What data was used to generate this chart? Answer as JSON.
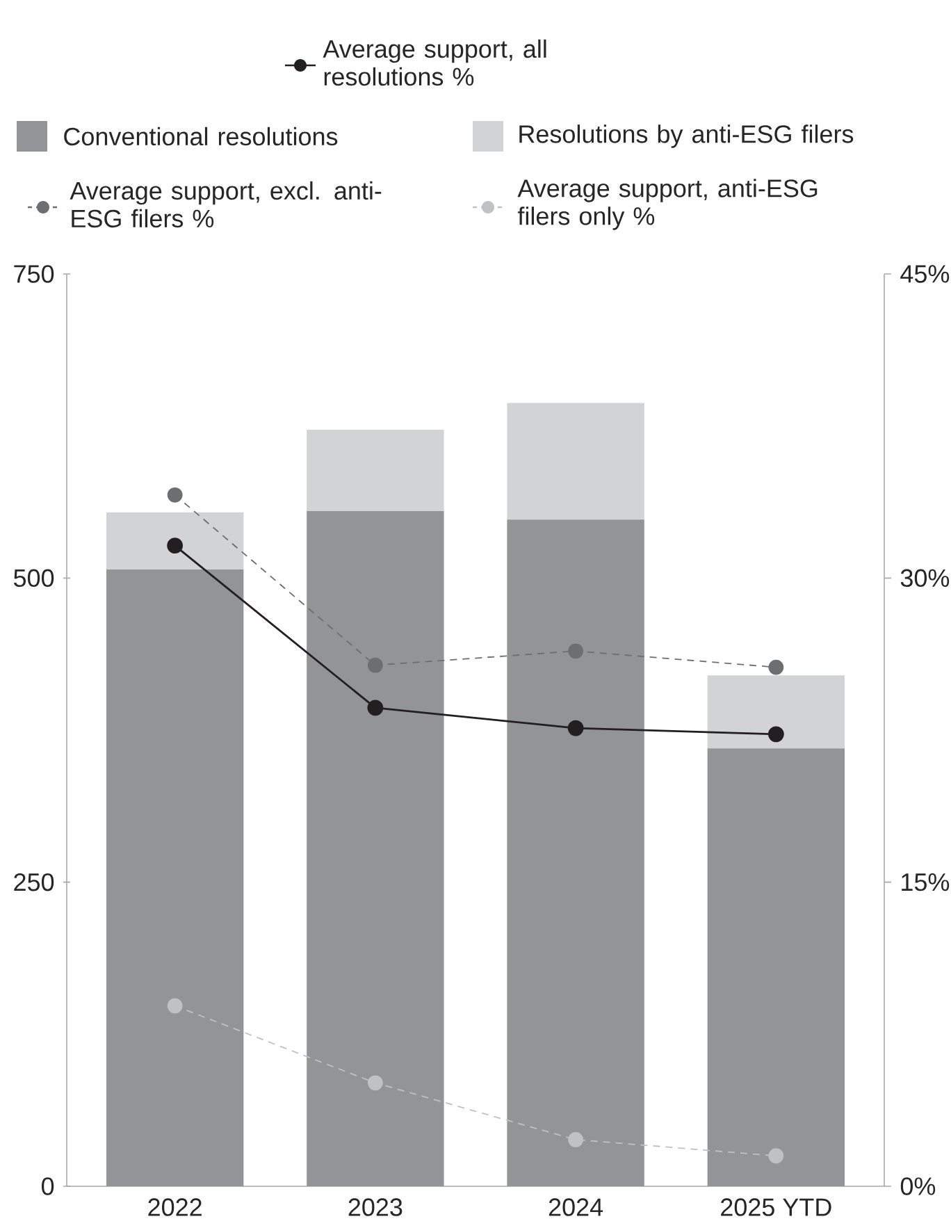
{
  "chart_data": {
    "type": "bar",
    "stacked": true,
    "categories": [
      "2022",
      "2023",
      "2024",
      "2025 YTD"
    ],
    "series": [
      {
        "name": "Average support, all resolutions %",
        "type": "line",
        "axis": "y2",
        "color": "#231f20",
        "marker": "circle",
        "line_style": "solid",
        "values": [
          31.6,
          23.6,
          22.6,
          22.3
        ]
      },
      {
        "name": "Conventional resolutions",
        "color": "#939498",
        "values": [
          507,
          555,
          548,
          360
        ]
      },
      {
        "name": "Resolutions by anti-ESG filers",
        "color": "#d2d3d5",
        "values": [
          47,
          67,
          96,
          60
        ]
      },
      {
        "name": "Average support, excl. anti-ESG filers %",
        "type": "line",
        "axis": "y2",
        "color": "#6d6e71",
        "marker": "circle",
        "line_style": "dashed",
        "values": [
          34.1,
          25.7,
          26.4,
          25.6
        ]
      },
      {
        "name": "Average support, anti-ESG filers only %",
        "type": "line",
        "axis": "y2",
        "color": "#c0c1c3",
        "marker": "circle",
        "line_style": "dashed",
        "values": [
          8.9,
          5.1,
          2.3,
          1.5
        ]
      }
    ],
    "ylim": [
      0,
      750
    ],
    "yticks": [
      0,
      250,
      500,
      750
    ],
    "y2lim": [
      0,
      45
    ],
    "y2ticks": [
      {
        "value": 0,
        "label": "0%"
      },
      {
        "value": 15,
        "label": "15%"
      },
      {
        "value": 30,
        "label": "30%"
      },
      {
        "value": 45,
        "label": "45%"
      }
    ],
    "legend": "top"
  }
}
